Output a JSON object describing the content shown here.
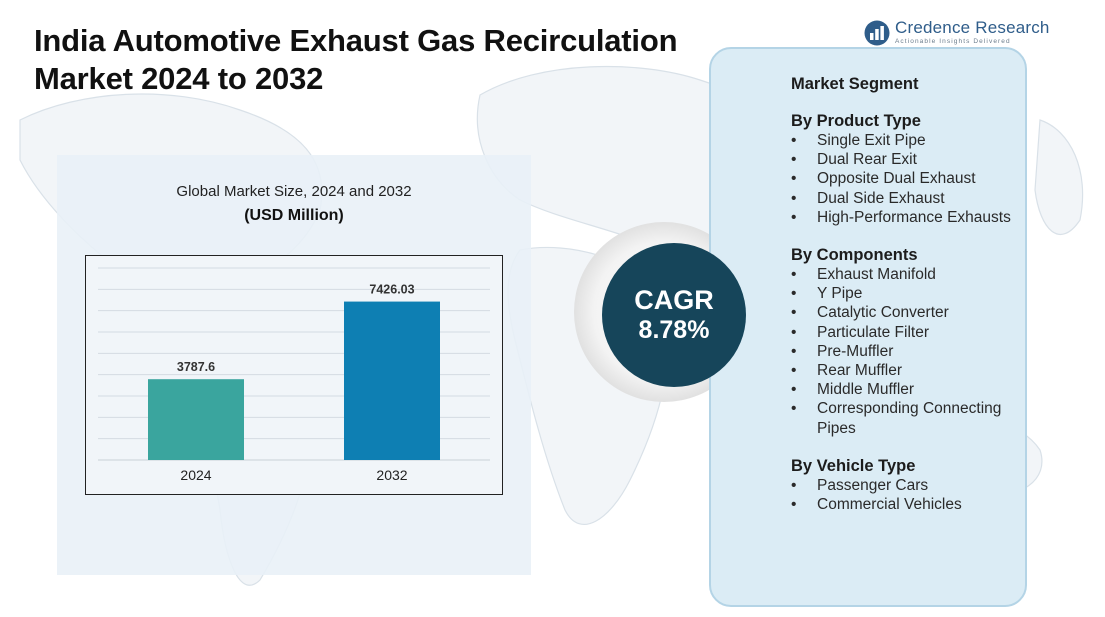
{
  "header": {
    "title_line1": "India Automotive Exhaust Gas Recirculation",
    "title_line2": "Market  2024 to 2032"
  },
  "logo": {
    "name": "Credence Research",
    "tagline": "Actionable Insights Delivered",
    "icon": "bar-chart-logo-icon"
  },
  "chart_data": {
    "type": "bar",
    "title": "Global Market Size, 2024 and 2032",
    "subtitle": "(USD Million)",
    "categories": [
      "2024",
      "2032"
    ],
    "values": [
      3787.6,
      7426.03
    ],
    "value_labels": [
      "3787.6",
      "7426.03"
    ],
    "ylim": [
      0,
      9000
    ],
    "grid": true,
    "legend": "none",
    "colors": [
      "#3aa59e",
      "#0e7fb3"
    ]
  },
  "cagr": {
    "label": "CAGR",
    "value": "8.78%"
  },
  "segments": {
    "heading": "Market Segment",
    "groups": [
      {
        "title": "By Product Type",
        "items": [
          "Single Exit Pipe",
          "Dual Rear Exit",
          "Opposite Dual Exhaust",
          "Dual Side Exhaust",
          "High-Performance Exhausts"
        ]
      },
      {
        "title": "By Components",
        "items": [
          "Exhaust Manifold",
          "Y Pipe",
          "Catalytic Converter",
          "Particulate Filter",
          "Pre-Muffler",
          "Rear Muffler",
          "Middle Muffler",
          "Corresponding Connecting Pipes"
        ]
      },
      {
        "title": "By Vehicle Type",
        "items": [
          "Passenger Cars",
          "Commercial Vehicles"
        ]
      }
    ]
  },
  "colors": {
    "panel_bg": "#e8f0f7",
    "segment_bg": "#dbecf5",
    "cagr_bg": "#16455a",
    "brand": "#2f5d8a"
  }
}
